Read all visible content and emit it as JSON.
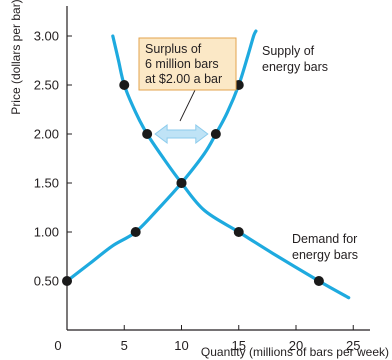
{
  "chart_data": {
    "type": "line",
    "xlabel": "Quantity (millions of bars per week)",
    "ylabel": "Price (dollars per bar)",
    "xlim": [
      0,
      25
    ],
    "ylim": [
      0,
      3.25
    ],
    "x_ticks": [
      0,
      5,
      10,
      15,
      20,
      25
    ],
    "x_tick_labels": [
      "0",
      "5",
      "10",
      "15",
      "20",
      "25"
    ],
    "y_ticks": [
      0.5,
      1.0,
      1.5,
      2.0,
      2.5,
      3.0
    ],
    "y_tick_labels": [
      "0.50",
      "1.00",
      "1.50",
      "2.00",
      "2.50",
      "3.00"
    ],
    "grid": false,
    "series": [
      {
        "name": "Supply of energy bars",
        "label_lines": [
          "Supply of",
          "energy bars"
        ],
        "curve": [
          [
            0,
            0.5
          ],
          [
            2,
            0.68
          ],
          [
            4,
            0.86
          ],
          [
            6,
            1.0
          ],
          [
            8,
            1.24
          ],
          [
            10,
            1.5
          ],
          [
            12,
            1.8
          ],
          [
            13,
            2.0
          ],
          [
            14,
            2.22
          ],
          [
            15,
            2.5
          ],
          [
            15.8,
            2.8
          ],
          [
            16.3,
            3.0
          ],
          [
            16.5,
            3.05
          ]
        ],
        "points": [
          [
            0,
            0.5
          ],
          [
            6,
            1.0
          ],
          [
            10,
            1.5
          ],
          [
            13,
            2.0
          ],
          [
            15,
            2.5
          ]
        ]
      },
      {
        "name": "Demand for energy bars",
        "label_lines": [
          "Demand for",
          "energy bars"
        ],
        "curve": [
          [
            4,
            3.0
          ],
          [
            4.5,
            2.75
          ],
          [
            5,
            2.5
          ],
          [
            6,
            2.22
          ],
          [
            7,
            2.0
          ],
          [
            8.5,
            1.74
          ],
          [
            10,
            1.5
          ],
          [
            12,
            1.22
          ],
          [
            15,
            1.0
          ],
          [
            18,
            0.78
          ],
          [
            22,
            0.5
          ],
          [
            24.6,
            0.33
          ]
        ],
        "points": [
          [
            5,
            2.5
          ],
          [
            7,
            2.0
          ],
          [
            10,
            1.5
          ],
          [
            15,
            1.0
          ],
          [
            22,
            0.5
          ]
        ]
      }
    ],
    "annotations": [
      {
        "name": "surplus",
        "lines": [
          "Surplus of",
          "6 million bars",
          "at $2.00 a bar"
        ],
        "arrow_from_x": 7,
        "arrow_to_x": 13,
        "arrow_y": 2.0
      }
    ]
  },
  "colors": {
    "curve": "#1eaadf",
    "point": "#1a1a1a",
    "axis": "#231f20",
    "callout_fill": "#fbe8c6",
    "callout_stroke": "#e3a34e",
    "arrow_fill": "#bfe3f6",
    "arrow_stroke": "#8ccbec"
  }
}
